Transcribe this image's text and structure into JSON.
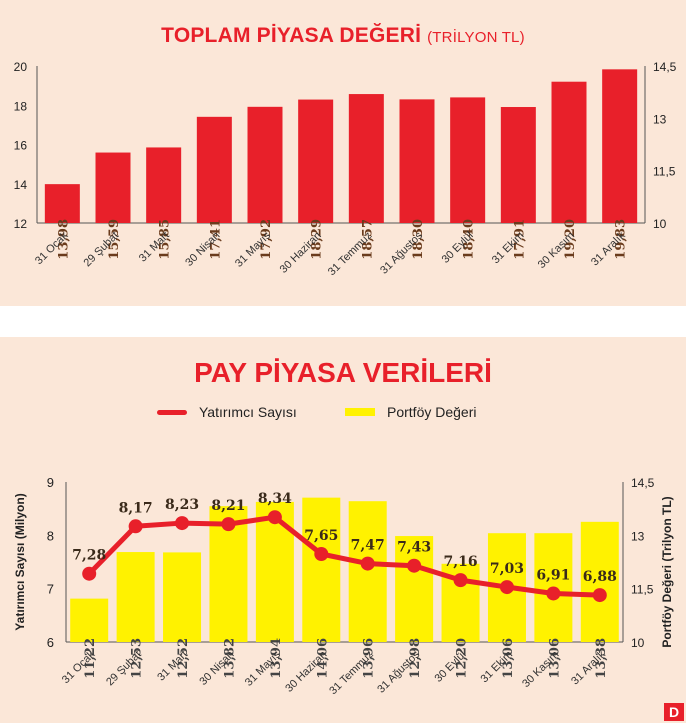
{
  "chart_data": [
    {
      "type": "bar",
      "title": "TOPLAM PİYASA DEĞERİ",
      "title_unit": "(TRİLYON TL)",
      "categories": [
        "31 Ocak",
        "29 Şubat",
        "31 Mart",
        "30 Nisan",
        "31 Mayıs",
        "30 Haziran",
        "31 Temmuz",
        "31 Ağustos",
        "30 Eylül",
        "31 Ekim",
        "30 Kasım",
        "31 Aralık"
      ],
      "values": [
        13.98,
        15.59,
        15.85,
        17.41,
        17.92,
        18.29,
        18.57,
        18.3,
        18.4,
        17.91,
        19.2,
        19.83
      ],
      "value_labels": [
        "13,98",
        "15,59",
        "15,85",
        "17,41",
        "17,92",
        "18,29",
        "18,57",
        "18,30",
        "18,40",
        "17,91",
        "19,20",
        "19,83"
      ],
      "ylim": [
        12,
        20
      ],
      "yticks": [
        "12",
        "14",
        "16",
        "18",
        "20"
      ],
      "y2lim": [
        10,
        14.5
      ],
      "y2ticks": [
        "10",
        "11,5",
        "13",
        "14,5"
      ],
      "color": "#e8202a"
    },
    {
      "type": "bar+line",
      "title": "PAY PİYASA VERİLERİ",
      "categories": [
        "31 Ocak",
        "29 Şubat",
        "31 Mart",
        "30 Nisan",
        "31 Mayıs",
        "30 Haziran",
        "31 Temmuz",
        "31 Ağustos",
        "30 Eylül",
        "31 Ekim",
        "30 Kasım",
        "31 Aralık"
      ],
      "series": [
        {
          "name": "Yatırımcı Sayısı",
          "kind": "line",
          "axis": "left",
          "values": [
            7.28,
            8.17,
            8.23,
            8.21,
            8.34,
            7.65,
            7.47,
            7.43,
            7.16,
            7.03,
            6.91,
            6.88
          ],
          "labels": [
            "7,28",
            "8,17",
            "8,23",
            "8,21",
            "8,34",
            "7,65",
            "7,47",
            "7,43",
            "7,16",
            "7,03",
            "6,91",
            "6,88"
          ],
          "color": "#e8202a"
        },
        {
          "name": "Portföy Değeri",
          "kind": "bar",
          "axis": "right",
          "values": [
            11.22,
            12.53,
            12.52,
            13.82,
            13.94,
            14.06,
            13.96,
            12.98,
            12.2,
            13.06,
            13.06,
            13.38
          ],
          "labels": [
            "11,22",
            "12,53",
            "12,52",
            "13,82",
            "13,94",
            "14,06",
            "13,96",
            "12,98",
            "12,20",
            "13,06",
            "13,06",
            "13,38"
          ],
          "color": "#fff200"
        }
      ],
      "ylabel": "Yatırımcı Sayısı (Milyon)",
      "y2label": "Portföy Değeri (Trilyon TL)",
      "ylim": [
        6,
        9
      ],
      "yticks": [
        "6",
        "7",
        "8",
        "9"
      ],
      "y2lim": [
        10,
        14.5
      ],
      "y2ticks": [
        "10",
        "11,5",
        "13",
        "14,5"
      ]
    }
  ],
  "logo_text": "D"
}
